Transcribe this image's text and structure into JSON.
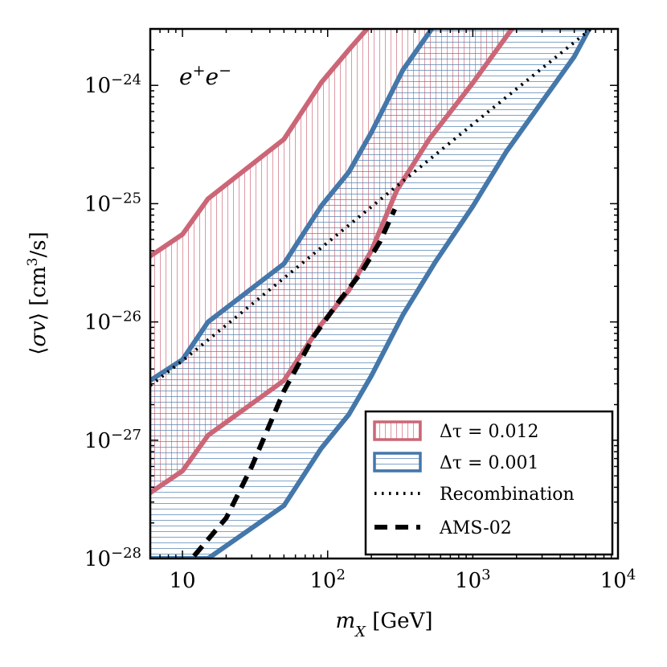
{
  "chart_data": {
    "type": "line",
    "xlabel": "m_X [GeV]",
    "ylabel": "⟨σv⟩ [cm³/s]",
    "xscale": "log",
    "yscale": "log",
    "xlim": [
      6,
      10000
    ],
    "ylim": [
      1e-28,
      3e-24
    ],
    "x_ticks": [
      10,
      100,
      1000,
      10000
    ],
    "x_tick_labels": [
      {
        "base": "10",
        "exp": ""
      },
      {
        "base": "10",
        "exp": "2"
      },
      {
        "base": "10",
        "exp": "3"
      },
      {
        "base": "10",
        "exp": "4"
      }
    ],
    "y_ticks": [
      1e-28,
      1e-27,
      1e-26,
      1e-25,
      1e-24
    ],
    "y_tick_labels": [
      {
        "base": "10",
        "exp": "−28"
      },
      {
        "base": "10",
        "exp": "−27"
      },
      {
        "base": "10",
        "exp": "−26"
      },
      {
        "base": "10",
        "exp": "−25"
      },
      {
        "base": "10",
        "exp": "−24"
      }
    ],
    "annotation": "e⁺e⁻",
    "legend_position": "lower-right",
    "bands": [
      {
        "name": "Δτ = 0.012",
        "color": "#cc6677",
        "hatch": "vertical",
        "upper": {
          "x": [
            6,
            10,
            15,
            50,
            90,
            140,
            200,
            300
          ],
          "y": [
            3.6e-26,
            5.5e-26,
            1.1e-25,
            3.5e-25,
            1.05e-24,
            2e-24,
            3.3e-24,
            6e-24
          ]
        },
        "lower": {
          "x": [
            6,
            10,
            15,
            50,
            90,
            140,
            200,
            300,
            500,
            1000,
            2000
          ],
          "y": [
            3.6e-28,
            5.5e-28,
            1.1e-27,
            3.2e-27,
            9.5e-27,
            1.85e-26,
            4e-26,
            1.3e-25,
            3.5e-25,
            1.05e-24,
            3.4e-24
          ]
        }
      },
      {
        "name": "Δτ = 0.001",
        "color": "#4477aa",
        "hatch": "horizontal",
        "upper": {
          "x": [
            6,
            10,
            15,
            50,
            90,
            140,
            200,
            330,
            550,
            800
          ],
          "y": [
            3.2e-27,
            4.8e-27,
            1e-26,
            3.1e-26,
            9.5e-26,
            1.85e-25,
            4e-25,
            1.35e-24,
            3.3e-24,
            6e-24
          ]
        },
        "lower": {
          "x": [
            5,
            15,
            50,
            90,
            140,
            200,
            330,
            550,
            1000,
            1700,
            5000,
            6600
          ],
          "y": [
            1e-28,
            1e-28,
            2.8e-28,
            8.5e-28,
            1.65e-27,
            3.5e-27,
            1.15e-26,
            3.2e-26,
            9.5e-26,
            2.75e-25,
            1.75e-24,
            3.3e-24
          ]
        }
      }
    ],
    "lines": [
      {
        "name": "Recombination",
        "style": "dotted",
        "color": "#000000",
        "x": [
          6,
          10,
          100,
          1000,
          6500
        ],
        "y": [
          2.9e-27,
          4.7e-27,
          4.7e-26,
          4.7e-25,
          3e-24
        ]
      },
      {
        "name": "AMS-02",
        "style": "dashed",
        "color": "#000000",
        "x": [
          12,
          20,
          30,
          50,
          80,
          120,
          170,
          230,
          290
        ],
        "y": [
          1.05e-28,
          2.2e-28,
          6e-28,
          2.6e-27,
          7.5e-27,
          1.5e-26,
          2.6e-26,
          4.8e-26,
          9e-26
        ]
      }
    ]
  }
}
